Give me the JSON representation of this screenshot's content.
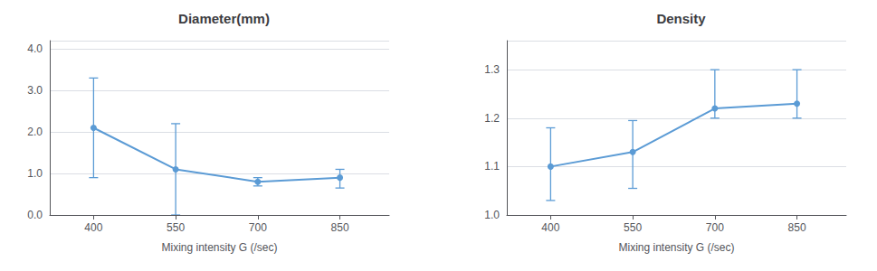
{
  "chart_data": [
    {
      "type": "line",
      "title": "Diameter(mm)",
      "xlabel": "Mixing intensity G (/sec)",
      "x": [
        400,
        550,
        700,
        850
      ],
      "values": [
        2.1,
        1.1,
        0.8,
        0.9
      ],
      "yerr_upper": [
        1.2,
        1.1,
        0.1,
        0.2
      ],
      "yerr_lower": [
        1.2,
        1.1,
        0.1,
        0.25
      ],
      "xlim": [
        320,
        940
      ],
      "xticks": [
        400,
        550,
        700,
        850
      ],
      "ylim": [
        0.0,
        4.2
      ],
      "yticks": [
        {
          "value": 0.0,
          "label": "0.0"
        },
        {
          "value": 1.0,
          "label": "1.0"
        },
        {
          "value": 2.0,
          "label": "2.0"
        },
        {
          "value": 3.0,
          "label": "3.0"
        },
        {
          "value": 4.0,
          "label": "4.0"
        }
      ],
      "grid": true,
      "marker": "circle",
      "color": "#5b9bd5"
    },
    {
      "type": "line",
      "title": "Density",
      "xlabel": "Mixing intensity G (/sec)",
      "x": [
        400,
        550,
        700,
        850
      ],
      "values": [
        1.1,
        1.13,
        1.22,
        1.23
      ],
      "yerr_upper": [
        0.08,
        0.065,
        0.08,
        0.07
      ],
      "yerr_lower": [
        0.07,
        0.075,
        0.02,
        0.03
      ],
      "xlim": [
        320,
        940
      ],
      "xticks": [
        400,
        550,
        700,
        850
      ],
      "ylim": [
        1.0,
        1.36
      ],
      "yticks": [
        {
          "value": 1.0,
          "label": "1.0"
        },
        1.1,
        1.2,
        1.3
      ],
      "grid": true,
      "marker": "circle",
      "color": "#5b9bd5"
    }
  ]
}
